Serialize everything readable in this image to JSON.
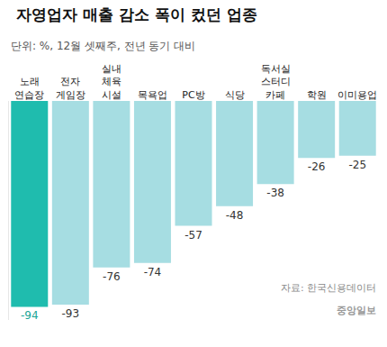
{
  "chart_data": {
    "type": "bar",
    "title": "자영업자 매출 감소 폭이 컸던 업종",
    "subtitle": "단위: %, 12월 셋째주, 전년 동기 대비",
    "categories": [
      "노래 연습장",
      "전자 게임장",
      "실내 체육 시설",
      "목욕업",
      "PC방",
      "식당",
      "독서실 스터디 카페",
      "학원",
      "이미용업"
    ],
    "values": [
      -94,
      -93,
      -76,
      -74,
      -57,
      -48,
      -38,
      -26,
      -25
    ],
    "colors": [
      "#1fbcae",
      "#a6dde2",
      "#a6dde2",
      "#a6dde2",
      "#a6dde2",
      "#a6dde2",
      "#a6dde2",
      "#a6dde2",
      "#a6dde2"
    ],
    "ylim": [
      -100,
      0
    ],
    "data_labels": true,
    "tick_labels": "x",
    "grid": false,
    "annotations": [
      "자료: 한국신용데이터",
      "중앙일보"
    ]
  }
}
